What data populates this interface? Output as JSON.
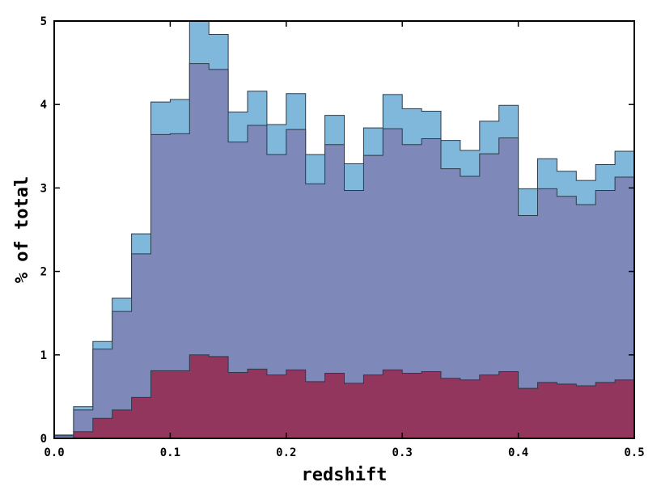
{
  "chart_data": {
    "type": "area",
    "step": true,
    "xlabel": "redshift",
    "ylabel": "% of total",
    "xlim": [
      0.0,
      0.5
    ],
    "ylim": [
      0,
      5
    ],
    "xticks": [
      "0.0",
      "0.1",
      "0.2",
      "0.3",
      "0.4",
      "0.5"
    ],
    "yticks": [
      "0",
      "1",
      "2",
      "3",
      "4",
      "5"
    ],
    "grid": false,
    "bin_edges": [
      0.0,
      0.01667,
      0.03333,
      0.05,
      0.06667,
      0.08333,
      0.1,
      0.11667,
      0.13333,
      0.15,
      0.16667,
      0.18333,
      0.2,
      0.21667,
      0.23333,
      0.25,
      0.26667,
      0.28333,
      0.3,
      0.31667,
      0.33333,
      0.35,
      0.36667,
      0.38333,
      0.4,
      0.41667,
      0.43333,
      0.45,
      0.46667,
      0.48333,
      0.5
    ],
    "series": [
      {
        "color": "#80b8db",
        "values": [
          0.04,
          0.38,
          1.16,
          1.68,
          2.45,
          4.03,
          4.06,
          5.0,
          4.84,
          3.91,
          4.16,
          3.76,
          4.13,
          3.4,
          3.87,
          3.29,
          3.72,
          4.12,
          3.95,
          3.92,
          3.57,
          3.45,
          3.8,
          3.99,
          2.99,
          3.35,
          3.2,
          3.09,
          3.28,
          3.44
        ]
      },
      {
        "color": "#7e88b9",
        "values": [
          0.03,
          0.34,
          1.07,
          1.52,
          2.21,
          3.64,
          3.65,
          4.49,
          4.42,
          3.55,
          3.75,
          3.4,
          3.7,
          3.05,
          3.52,
          2.97,
          3.39,
          3.71,
          3.52,
          3.59,
          3.23,
          3.14,
          3.41,
          3.6,
          2.67,
          2.99,
          2.9,
          2.8,
          2.97,
          3.13
        ]
      },
      {
        "color": "#92365e",
        "values": [
          0.0,
          0.08,
          0.24,
          0.34,
          0.49,
          0.81,
          0.81,
          1.0,
          0.98,
          0.79,
          0.83,
          0.76,
          0.82,
          0.68,
          0.78,
          0.66,
          0.76,
          0.82,
          0.78,
          0.8,
          0.72,
          0.7,
          0.76,
          0.8,
          0.6,
          0.67,
          0.65,
          0.63,
          0.67,
          0.7
        ]
      }
    ]
  }
}
